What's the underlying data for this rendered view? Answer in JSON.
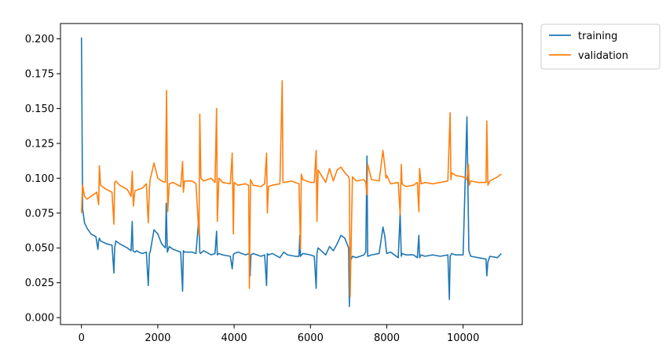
{
  "chart_data": {
    "type": "line",
    "title": "",
    "xlabel": "",
    "ylabel": "",
    "xlim": [
      -550,
      11550
    ],
    "ylim": [
      -0.005,
      0.211
    ],
    "x_ticks": [
      0,
      2000,
      4000,
      6000,
      8000,
      10000
    ],
    "x_tick_labels": [
      "0",
      "2000",
      "4000",
      "6000",
      "8000",
      "10000"
    ],
    "y_ticks": [
      0.0,
      0.025,
      0.05,
      0.075,
      0.1,
      0.125,
      0.15,
      0.175,
      0.2
    ],
    "y_tick_labels": [
      "0.000",
      "0.025",
      "0.050",
      "0.075",
      "0.100",
      "0.125",
      "0.150",
      "0.175",
      "0.200"
    ],
    "grid": false,
    "legend_position": "outside-top-right",
    "series": [
      {
        "name": "training",
        "color": "#1f77b4",
        "x": [
          0,
          30,
          80,
          150,
          250,
          380,
          430,
          450,
          470,
          500,
          650,
          800,
          850,
          870,
          900,
          1000,
          1200,
          1300,
          1330,
          1350,
          1400,
          1450,
          1500,
          1600,
          1700,
          1750,
          1780,
          1800,
          1900,
          2000,
          2100,
          2200,
          2220,
          2250,
          2300,
          2400,
          2600,
          2650,
          2670,
          2700,
          2900,
          3000,
          3080,
          3100,
          3120,
          3200,
          3400,
          3500,
          3540,
          3560,
          3600,
          3700,
          3900,
          3950,
          3980,
          4000,
          4100,
          4300,
          4400,
          4420,
          4440,
          4500,
          4700,
          4800,
          4850,
          4870,
          4900,
          5000,
          5200,
          5300,
          5400,
          5600,
          5700,
          5720,
          5740,
          5800,
          6000,
          6100,
          6150,
          6170,
          6200,
          6400,
          6500,
          6600,
          6700,
          6800,
          6900,
          7000,
          7020,
          7040,
          7100,
          7200,
          7400,
          7450,
          7480,
          7500,
          7600,
          7800,
          7900,
          7950,
          7980,
          8000,
          8100,
          8300,
          8350,
          8380,
          8400,
          8500,
          8700,
          8800,
          8840,
          8860,
          8900,
          9000,
          9200,
          9400,
          9600,
          9640,
          9660,
          9700,
          9800,
          10000,
          10100,
          10150,
          10200,
          10400,
          10600,
          10620,
          10650,
          10700,
          10900,
          11000
        ],
        "values": [
          0.201,
          0.078,
          0.068,
          0.064,
          0.06,
          0.058,
          0.049,
          0.055,
          0.057,
          0.055,
          0.053,
          0.052,
          0.032,
          0.05,
          0.055,
          0.053,
          0.05,
          0.048,
          0.069,
          0.048,
          0.047,
          0.048,
          0.047,
          0.046,
          0.047,
          0.023,
          0.046,
          0.047,
          0.063,
          0.06,
          0.053,
          0.05,
          0.082,
          0.047,
          0.051,
          0.049,
          0.047,
          0.019,
          0.048,
          0.047,
          0.047,
          0.046,
          0.073,
          0.047,
          0.046,
          0.048,
          0.045,
          0.046,
          0.062,
          0.045,
          0.046,
          0.045,
          0.044,
          0.035,
          0.045,
          0.046,
          0.047,
          0.045,
          0.046,
          0.03,
          0.045,
          0.046,
          0.044,
          0.045,
          0.023,
          0.046,
          0.045,
          0.046,
          0.043,
          0.047,
          0.045,
          0.044,
          0.044,
          0.059,
          0.044,
          0.046,
          0.045,
          0.044,
          0.021,
          0.046,
          0.05,
          0.045,
          0.051,
          0.048,
          0.053,
          0.059,
          0.057,
          0.05,
          0.008,
          0.04,
          0.044,
          0.043,
          0.045,
          0.047,
          0.116,
          0.044,
          0.045,
          0.046,
          0.065,
          0.058,
          0.05,
          0.046,
          0.047,
          0.043,
          0.075,
          0.044,
          0.046,
          0.045,
          0.045,
          0.043,
          0.059,
          0.043,
          0.045,
          0.044,
          0.045,
          0.044,
          0.045,
          0.013,
          0.044,
          0.046,
          0.045,
          0.045,
          0.144,
          0.048,
          0.044,
          0.043,
          0.042,
          0.03,
          0.04,
          0.044,
          0.043,
          0.046
        ]
      },
      {
        "name": "validation",
        "color": "#ff7f0e",
        "x": [
          0,
          30,
          80,
          150,
          300,
          400,
          450,
          470,
          500,
          650,
          800,
          850,
          870,
          900,
          1000,
          1200,
          1300,
          1330,
          1360,
          1400,
          1600,
          1700,
          1750,
          1780,
          1800,
          1900,
          2000,
          2100,
          2200,
          2230,
          2260,
          2300,
          2400,
          2600,
          2650,
          2670,
          2700,
          2900,
          3000,
          3080,
          3100,
          3130,
          3200,
          3400,
          3500,
          3540,
          3560,
          3600,
          3700,
          3900,
          3950,
          3980,
          4000,
          4100,
          4300,
          4380,
          4400,
          4430,
          4500,
          4700,
          4800,
          4850,
          4870,
          4900,
          5000,
          5200,
          5260,
          5280,
          5300,
          5500,
          5700,
          5740,
          5760,
          5800,
          6000,
          6100,
          6150,
          6170,
          6200,
          6400,
          6500,
          6600,
          6700,
          6800,
          6900,
          7000,
          7020,
          7040,
          7100,
          7200,
          7400,
          7450,
          7480,
          7500,
          7600,
          7800,
          7900,
          7950,
          7980,
          8000,
          8100,
          8300,
          8350,
          8380,
          8400,
          8500,
          8700,
          8800,
          8840,
          8860,
          8900,
          9000,
          9200,
          9400,
          9600,
          9660,
          9680,
          9700,
          9800,
          10000,
          10100,
          10140,
          10160,
          10200,
          10400,
          10600,
          10620,
          10650,
          10700,
          10900,
          11000
        ],
        "values": [
          0.075,
          0.095,
          0.087,
          0.085,
          0.088,
          0.09,
          0.081,
          0.109,
          0.095,
          0.092,
          0.09,
          0.067,
          0.097,
          0.098,
          0.095,
          0.092,
          0.087,
          0.105,
          0.08,
          0.091,
          0.093,
          0.096,
          0.068,
          0.093,
          0.099,
          0.111,
          0.1,
          0.098,
          0.097,
          0.163,
          0.076,
          0.096,
          0.097,
          0.094,
          0.112,
          0.09,
          0.098,
          0.098,
          0.096,
          0.059,
          0.146,
          0.1,
          0.098,
          0.1,
          0.097,
          0.15,
          0.069,
          0.1,
          0.097,
          0.096,
          0.118,
          0.06,
          0.097,
          0.095,
          0.096,
          0.095,
          0.021,
          0.099,
          0.095,
          0.094,
          0.096,
          0.118,
          0.075,
          0.094,
          0.095,
          0.096,
          0.17,
          0.097,
          0.097,
          0.098,
          0.096,
          0.049,
          0.103,
          0.099,
          0.097,
          0.097,
          0.12,
          0.069,
          0.106,
          0.097,
          0.107,
          0.098,
          0.106,
          0.108,
          0.104,
          0.101,
          0.099,
          0.015,
          0.101,
          0.098,
          0.099,
          0.097,
          0.088,
          0.11,
          0.099,
          0.098,
          0.12,
          0.108,
          0.1,
          0.102,
          0.096,
          0.097,
          0.074,
          0.11,
          0.096,
          0.094,
          0.095,
          0.097,
          0.076,
          0.107,
          0.096,
          0.097,
          0.096,
          0.097,
          0.098,
          0.147,
          0.099,
          0.104,
          0.102,
          0.101,
          0.099,
          0.11,
          0.095,
          0.098,
          0.097,
          0.097,
          0.141,
          0.095,
          0.098,
          0.101,
          0.103
        ]
      }
    ]
  }
}
